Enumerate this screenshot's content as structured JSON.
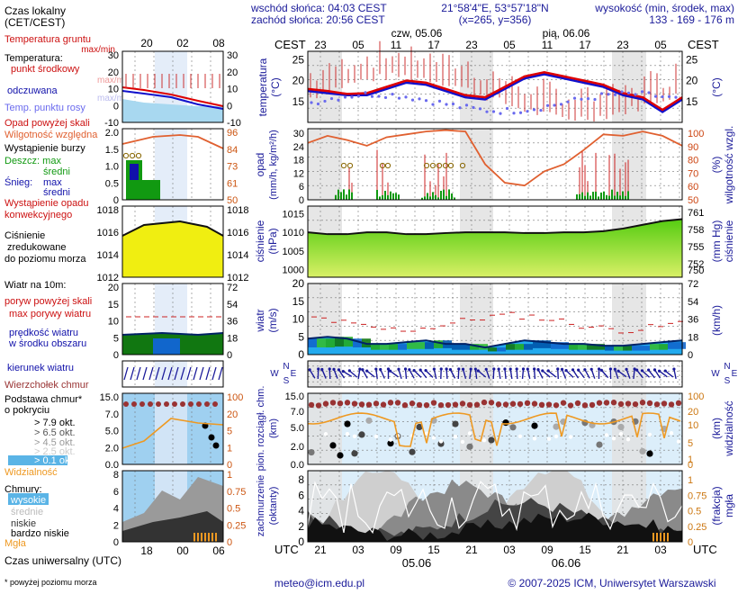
{
  "header": {
    "sunrise": "wschód słońca: 04:03 CEST",
    "sunset": "zachód słońca: 20:56 CEST",
    "coords": "21°58'4\"E, 53°57'18\"N",
    "grid": "(x=265, y=356)",
    "height_title": "wysokość (min, środek, max)",
    "heights": "133 - 169 - 176 m"
  },
  "time": {
    "left_tz": "CEST",
    "right_tz": "CEST",
    "utc_left": "UTC",
    "utc_right": "UTC",
    "day1": "czw, 05.06",
    "day2": "pią, 06.06",
    "day1_bottom": "05.06",
    "day2_bottom": "06.06",
    "top_ticks": [
      "23",
      "05",
      "11",
      "17",
      "23",
      "05",
      "11",
      "17",
      "23",
      "05"
    ],
    "bottom_ticks": [
      "21",
      "03",
      "09",
      "15",
      "21",
      "03",
      "09",
      "15",
      "21",
      "03"
    ]
  },
  "legend": {
    "local_time": "Czas lokalny",
    "local_time_sub": "(CET/CEST)",
    "local_ticks": [
      "20",
      "02",
      "08"
    ],
    "utc_ticks": [
      "18",
      "00",
      "06"
    ],
    "utc_label": "Czas uniwersalny (UTC)",
    "ground_temp": "Temperatura gruntu",
    "ground_temp_sub": "max/min",
    "temp": "Temperatura:",
    "temp_mid": "punkt środkowy",
    "temp_range": "max/min",
    "felt": "odczuwana",
    "felt_sub": "max/min",
    "dew": "Temp. punktu rosy",
    "precip_over": "Opad powyżej skali",
    "humidity": "Wilgotność względna",
    "storm": "Wystąpienie burzy",
    "rain": "Deszcz: max",
    "rain_mid": "średni",
    "snow": "Śnieg:",
    "snow_max": "max",
    "snow_mid": "średni",
    "conv1": "Wystąpienie opadu",
    "conv2": "konwekcyjnego",
    "pressure1": "Ciśnienie",
    "pressure2": "zredukowane",
    "pressure3": "do poziomu morza",
    "gust_over": "poryw powyżej skali",
    "gust": "max porywy wiatru",
    "wind_head": "Wiatr na 10m:",
    "wind_mean": "prędkość wiatru",
    "wind_mean2": "w środku obszaru",
    "wind_dir": "kierunek wiatru",
    "cb_top": "Wierzchołek chmur",
    "cloud_base": "Podstawa chmur*",
    "cloud_base2": "o pokryciu",
    "okt": [
      "> 7.9 okt.",
      "> 6.5 okt.",
      "> 4.5 okt.",
      "> 2.5 okt.",
      "> 0.1 okt."
    ],
    "visibility": "Widzialność",
    "clouds": "Chmury:",
    "cl_high": "wysokie",
    "cl_mid": "średnie",
    "cl_low": "niskie",
    "cl_vlow": "bardzo niskie",
    "fog": "Mgła",
    "footnote": "* powyżej poziomu morza"
  },
  "panels": {
    "temperature": {
      "label": "temperatura",
      "unit": "(°C)",
      "ticks": [
        "25",
        "20",
        "15"
      ]
    },
    "precip": {
      "label": "opad",
      "unit": "(mm/h, kg/m²/h)",
      "ticks": [
        "30",
        "24",
        "18",
        "12",
        "6",
        "0"
      ],
      "right_label": "wilgotność wzgl.",
      "right_unit": "(%)",
      "right_ticks": [
        "100",
        "90",
        "80",
        "70",
        "60",
        "50"
      ]
    },
    "pressure": {
      "label": "ciśnienie",
      "unit": "(hPa)",
      "ticks": [
        "1015",
        "1010",
        "1005",
        "1000"
      ],
      "right_label": "ciśnienie",
      "right_unit": "(mm Hg)",
      "right_ticks": [
        "761",
        "758",
        "755",
        "752",
        "750"
      ]
    },
    "wind": {
      "label": "wiatr",
      "unit": "(m/s)",
      "ticks": [
        "20",
        "15",
        "10",
        "5",
        "0"
      ],
      "right_label": "(km/h)",
      "right_ticks": [
        "72",
        "54",
        "36",
        "18",
        "0"
      ]
    },
    "cloudbase": {
      "label": "pion. rozciągł. chm.",
      "unit": "(km)",
      "ticks": [
        "15.0",
        "7.0",
        "5.0",
        "2.0",
        "0.0"
      ],
      "right_label": "widzialność",
      "right_unit": "(km)",
      "right_ticks": [
        "100",
        "20",
        "10",
        "5",
        "1",
        "0"
      ]
    },
    "cover": {
      "label": "zachmurzenie",
      "unit": "(oktanty)",
      "ticks": [
        "8",
        "6",
        "4",
        "2",
        "0"
      ],
      "right_label": "mgła",
      "right_unit": "(frakcja)",
      "right_ticks": [
        "1",
        "0.75",
        "0.5",
        "0.25",
        "0"
      ]
    }
  },
  "legend_axes": {
    "temp": [
      "30",
      "20",
      "10",
      "0",
      "-10"
    ],
    "temp_r": [
      "30",
      "20",
      "10",
      "0",
      "-10"
    ],
    "precip": [
      "2.0",
      "1.5",
      "1.0",
      "0.5",
      "0"
    ],
    "precip_r": [
      "96",
      "84",
      "73",
      "61",
      "50"
    ],
    "pres": [
      "1018",
      "1016",
      "1014",
      "1012"
    ],
    "pres_r": [
      "1018",
      "1016",
      "1014",
      "1012"
    ],
    "wind": [
      "20",
      "15",
      "10",
      "5",
      "0"
    ],
    "wind_r": [
      "72",
      "54",
      "36",
      "18",
      "0"
    ],
    "cb": [
      "15.0",
      "7.0",
      "5.0",
      "2.0",
      "0.0"
    ],
    "cb_r": [
      "100",
      "20",
      "5",
      "1",
      "0"
    ],
    "cov": [
      "8",
      "6",
      "4",
      "2",
      "0"
    ],
    "cov_r": [
      "1",
      "0.75",
      "0.5",
      "0.25",
      "0"
    ]
  },
  "footer": {
    "email": "meteo@icm.edu.pl",
    "copyright": "© 2007-2025 ICM, Uniwersytet Warszawski"
  },
  "colors": {
    "temp_line": "#dd0000",
    "felt_line": "#1010cc",
    "dew": "#6a6aee",
    "humidity": "#e06030",
    "pressure_fill": "#88dd22",
    "wind_dark": "#004488",
    "cloud_top": "#993333",
    "visibility": "#ee9922"
  },
  "chart_data": {
    "type": "line",
    "x_hours_utc": [
      21,
      0,
      3,
      6,
      9,
      12,
      15,
      18,
      21,
      0,
      3,
      6,
      9,
      12,
      15,
      18,
      21,
      0,
      3,
      6
    ],
    "series": [
      {
        "name": "temperatura",
        "values": [
          18,
          17.5,
          16.8,
          17,
          18.5,
          20,
          19.5,
          18,
          16.5,
          16,
          18.5,
          21,
          22,
          21,
          20,
          19,
          17,
          16,
          13,
          16
        ]
      },
      {
        "name": "odczuwana",
        "values": [
          17.5,
          17,
          16.5,
          16.5,
          18,
          19.5,
          19,
          17.5,
          16,
          15.5,
          18,
          20.5,
          21.5,
          20.5,
          19.5,
          18.5,
          16.5,
          15.5,
          12.5,
          15.5
        ]
      },
      {
        "name": "ciśnienie",
        "values": [
          1010,
          1009.5,
          1009.5,
          1010,
          1010,
          1009.5,
          1009.5,
          1009.8,
          1010,
          1010,
          1010,
          1009.8,
          1009.8,
          1010,
          1010,
          1010.3,
          1011,
          1012,
          1013,
          1013.5
        ]
      },
      {
        "name": "prędkość wiatru",
        "values": [
          4.5,
          5,
          4.5,
          3,
          3,
          3.5,
          4,
          3,
          3,
          2,
          3,
          4,
          3.5,
          3,
          3,
          2.5,
          2.5,
          3,
          3.5,
          4
        ]
      },
      {
        "name": "wilgotność",
        "values": [
          90,
          95,
          92,
          88,
          94,
          96,
          98,
          99,
          98,
          75,
          62,
          60,
          70,
          75,
          85,
          96,
          95,
          98,
          95,
          88
        ]
      }
    ]
  }
}
